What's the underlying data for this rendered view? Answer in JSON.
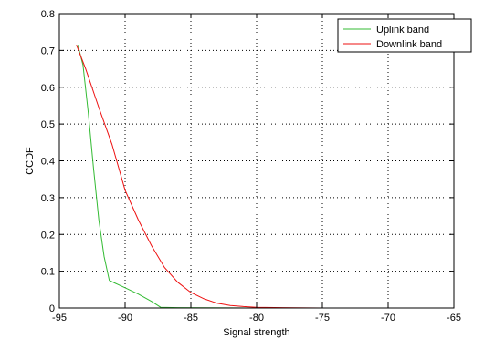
{
  "chart_data": {
    "type": "line",
    "xlabel": "Signal strength",
    "ylabel": "CCDF",
    "xlim": [
      -95,
      -65
    ],
    "ylim": [
      0,
      0.8
    ],
    "xticks": [
      -95,
      -90,
      -85,
      -80,
      -75,
      -70,
      -65
    ],
    "yticks": [
      0,
      0.1,
      0.2,
      0.3,
      0.4,
      0.5,
      0.6,
      0.7,
      0.8
    ],
    "xtick_labels": [
      "-95",
      "-90",
      "-85",
      "-80",
      "-75",
      "-70",
      "-65"
    ],
    "ytick_labels": [
      "0",
      "0.1",
      "0.2",
      "0.3",
      "0.4",
      "0.5",
      "0.6",
      "0.7",
      "0.8"
    ],
    "grid": true,
    "grid_style": "dotted",
    "legend_position": "top-right",
    "series": [
      {
        "name": "Uplink band",
        "color": "#33bb33",
        "x": [
          -93.6,
          -93.2,
          -92.8,
          -92.4,
          -92.0,
          -91.6,
          -91.2,
          -90.8,
          -90.0,
          -89.0,
          -88.0,
          -87.3,
          -86.0,
          -80.0,
          -74.0,
          -67.3
        ],
        "y": [
          0.715,
          0.66,
          0.53,
          0.38,
          0.24,
          0.14,
          0.075,
          0.068,
          0.055,
          0.038,
          0.018,
          0.002,
          0.001,
          0.0,
          0.0,
          0.0
        ]
      },
      {
        "name": "Downlink band",
        "color": "#ee1111",
        "x": [
          -93.7,
          -93.0,
          -92.0,
          -91.0,
          -90.0,
          -89.0,
          -88.0,
          -87.0,
          -86.0,
          -85.0,
          -84.0,
          -83.0,
          -82.0,
          -81.0,
          -80.0,
          -78.0,
          -75.0,
          -70.0,
          -67.3
        ],
        "y": [
          0.715,
          0.65,
          0.545,
          0.445,
          0.32,
          0.24,
          0.17,
          0.11,
          0.07,
          0.042,
          0.025,
          0.013,
          0.007,
          0.004,
          0.002,
          0.001,
          0.0,
          0.0,
          0.0
        ]
      }
    ]
  }
}
